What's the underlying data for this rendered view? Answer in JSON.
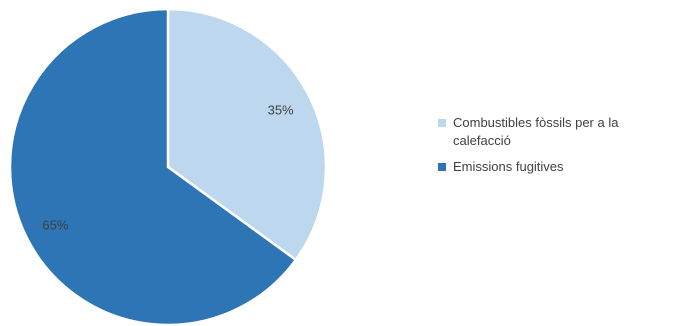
{
  "chart_data": {
    "type": "pie",
    "title": "",
    "categories": [
      "Combustibles fòssils per a la calefacció",
      "Emissions fugitives"
    ],
    "values": [
      35,
      65
    ],
    "labels": [
      "35%",
      "65%"
    ],
    "colors": [
      "#bdd7ee",
      "#2e75b6"
    ],
    "legend": "right",
    "start_angle": "12 o'clock",
    "direction": "clockwise"
  }
}
